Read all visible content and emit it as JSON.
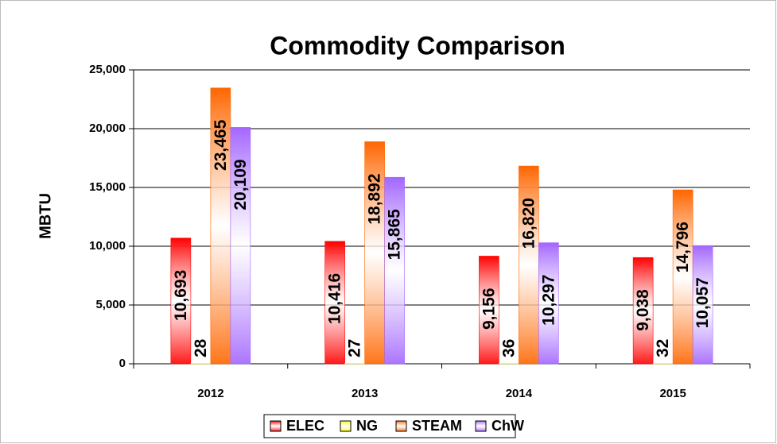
{
  "chart_data": {
    "type": "bar",
    "title": "Commodity Comparison",
    "y_label": "MBTU",
    "categories": [
      "2012",
      "2013",
      "2014",
      "2015"
    ],
    "series": [
      {
        "name": "ELEC",
        "color": "#ff0000",
        "values": [
          10693,
          10416,
          9156,
          9038
        ],
        "value_labels": [
          "10,693",
          "10,416",
          "9,156",
          "9,038"
        ]
      },
      {
        "name": "NG",
        "color": "#ffff00",
        "values": [
          28,
          27,
          36,
          32
        ],
        "value_labels": [
          "28",
          "27",
          "36",
          "32"
        ]
      },
      {
        "name": "STEAM",
        "color": "#ff6600",
        "values": [
          23465,
          18892,
          16820,
          14796
        ],
        "value_labels": [
          "23,465",
          "18,892",
          "16,820",
          "14,796"
        ]
      },
      {
        "name": "ChW",
        "color": "#a366ff",
        "values": [
          20109,
          15865,
          10297,
          10057
        ],
        "value_labels": [
          "20,109",
          "15,865",
          "10,297",
          "10,057"
        ]
      }
    ],
    "ylim": [
      0,
      25000
    ],
    "yticks": [
      0,
      {
        "value": 5000,
        "label": "5,000"
      },
      {
        "value": 10000,
        "label": "10,000"
      },
      {
        "value": 15000,
        "label": "15,000"
      },
      {
        "value": 20000,
        "label": "20,000"
      },
      {
        "value": 25000,
        "label": "25,000"
      }
    ],
    "grid": true,
    "legend": "bottom"
  }
}
